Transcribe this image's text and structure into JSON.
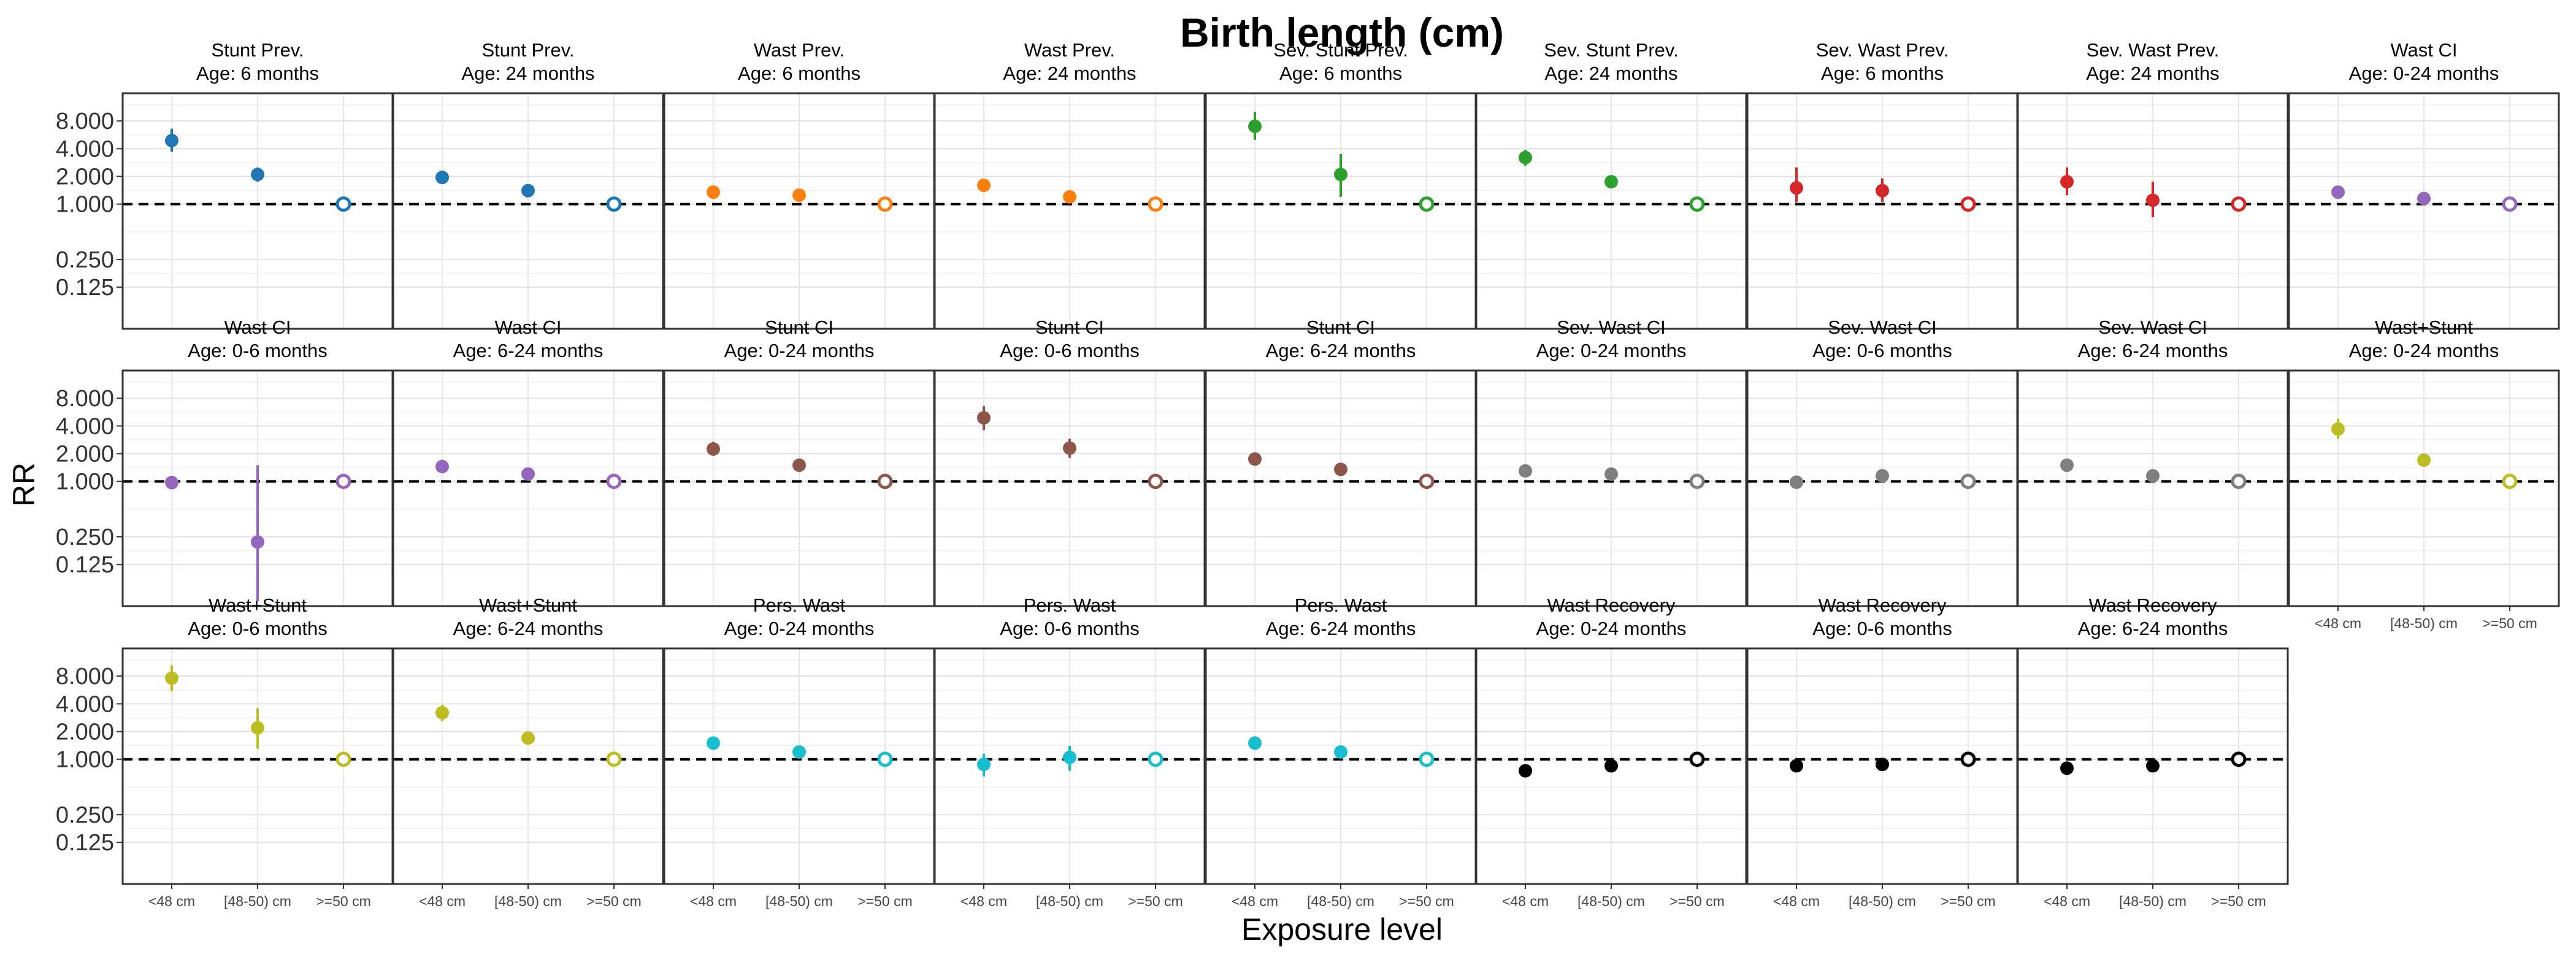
{
  "chart_data": {
    "type": "scatter",
    "title": "Birth length (cm)",
    "xlabel": "Exposure level",
    "ylabel": "RR",
    "y_scale": "log2",
    "ylim": [
      0.0442,
      16
    ],
    "y_ticks": [
      "0.125",
      "0.250",
      "1.000",
      "2.000",
      "4.000",
      "8.000"
    ],
    "categories": [
      "<48 cm",
      "[48-50) cm",
      ">=50 cm"
    ],
    "reference_line": 1,
    "grid": true,
    "legend": "none",
    "panels": [
      {
        "outcome": "Stunt Prev.",
        "age": "Age: 6 months",
        "color": "#1f77b4",
        "rr": [
          4.9,
          2.1,
          1.0
        ],
        "lower": [
          3.7,
          1.75,
          1.0
        ],
        "upper": [
          6.6,
          2.5,
          1.0
        ]
      },
      {
        "outcome": "Stunt Prev.",
        "age": "Age: 24 months",
        "color": "#1f77b4",
        "rr": [
          1.95,
          1.4,
          1.0
        ],
        "lower": [
          1.8,
          1.3,
          1.0
        ],
        "upper": [
          2.1,
          1.5,
          1.0
        ]
      },
      {
        "outcome": "Wast Prev.",
        "age": "Age: 6 months",
        "color": "#ff7f0e",
        "rr": [
          1.35,
          1.25,
          1.0
        ],
        "lower": [
          1.2,
          1.1,
          1.0
        ],
        "upper": [
          1.5,
          1.4,
          1.0
        ]
      },
      {
        "outcome": "Wast Prev.",
        "age": "Age: 24 months",
        "color": "#ff7f0e",
        "rr": [
          1.6,
          1.2,
          1.0
        ],
        "lower": [
          1.45,
          1.1,
          1.0
        ],
        "upper": [
          1.75,
          1.3,
          1.0
        ]
      },
      {
        "outcome": "Sev. Stunt Prev.",
        "age": "Age: 6 months",
        "color": "#2ca02c",
        "rr": [
          7.0,
          2.1,
          1.0
        ],
        "lower": [
          5.0,
          1.2,
          1.0
        ],
        "upper": [
          10.0,
          3.5,
          1.0
        ]
      },
      {
        "outcome": "Sev. Stunt Prev.",
        "age": "Age: 24 months",
        "color": "#2ca02c",
        "rr": [
          3.2,
          1.75,
          1.0
        ],
        "lower": [
          2.6,
          1.6,
          1.0
        ],
        "upper": [
          3.9,
          1.9,
          1.0
        ]
      },
      {
        "outcome": "Sev. Wast Prev.",
        "age": "Age: 6 months",
        "color": "#d62728",
        "rr": [
          1.5,
          1.4,
          1.0
        ],
        "lower": [
          1.05,
          1.05,
          1.0
        ],
        "upper": [
          2.5,
          1.9,
          1.0
        ]
      },
      {
        "outcome": "Sev. Wast Prev.",
        "age": "Age: 24 months",
        "color": "#d62728",
        "rr": [
          1.75,
          1.1,
          1.0
        ],
        "lower": [
          1.25,
          0.72,
          1.0
        ],
        "upper": [
          2.5,
          1.75,
          1.0
        ]
      },
      {
        "outcome": "Wast CI",
        "age": "Age: 0-24 months",
        "color": "#9467bd",
        "rr": [
          1.35,
          1.15,
          1.0
        ],
        "lower": [
          1.25,
          1.05,
          1.0
        ],
        "upper": [
          1.45,
          1.25,
          1.0
        ]
      },
      {
        "outcome": "Wast CI",
        "age": "Age: 0-6 months",
        "color": "#9467bd",
        "rr": [
          0.97,
          0.22,
          1.0
        ],
        "lower": [
          0.9,
          0.05,
          1.0
        ],
        "upper": [
          1.05,
          1.5,
          1.0
        ]
      },
      {
        "outcome": "Wast CI",
        "age": "Age: 6-24 months",
        "color": "#9467bd",
        "rr": [
          1.45,
          1.2,
          1.0
        ],
        "lower": [
          1.35,
          1.1,
          1.0
        ],
        "upper": [
          1.55,
          1.3,
          1.0
        ]
      },
      {
        "outcome": "Stunt CI",
        "age": "Age: 0-24 months",
        "color": "#8c564b",
        "rr": [
          2.25,
          1.5,
          1.0
        ],
        "lower": [
          1.9,
          1.35,
          1.0
        ],
        "upper": [
          2.7,
          1.65,
          1.0
        ]
      },
      {
        "outcome": "Stunt CI",
        "age": "Age: 0-6 months",
        "color": "#8c564b",
        "rr": [
          4.9,
          2.3,
          1.0
        ],
        "lower": [
          3.6,
          1.8,
          1.0
        ],
        "upper": [
          6.6,
          2.9,
          1.0
        ]
      },
      {
        "outcome": "Stunt CI",
        "age": "Age: 6-24 months",
        "color": "#8c564b",
        "rr": [
          1.75,
          1.35,
          1.0
        ],
        "lower": [
          1.55,
          1.25,
          1.0
        ],
        "upper": [
          2.0,
          1.45,
          1.0
        ]
      },
      {
        "outcome": "Sev. Wast CI",
        "age": "Age: 0-24 months",
        "color": "#7f7f7f",
        "rr": [
          1.3,
          1.2,
          1.0
        ],
        "lower": [
          1.15,
          1.1,
          1.0
        ],
        "upper": [
          1.45,
          1.3,
          1.0
        ]
      },
      {
        "outcome": "Sev. Wast CI",
        "age": "Age: 0-6 months",
        "color": "#7f7f7f",
        "rr": [
          0.98,
          1.15,
          1.0
        ],
        "lower": [
          0.85,
          1.0,
          1.0
        ],
        "upper": [
          1.15,
          1.3,
          1.0
        ]
      },
      {
        "outcome": "Sev. Wast CI",
        "age": "Age: 6-24 months",
        "color": "#7f7f7f",
        "rr": [
          1.5,
          1.15,
          1.0
        ],
        "lower": [
          1.35,
          1.05,
          1.0
        ],
        "upper": [
          1.65,
          1.25,
          1.0
        ]
      },
      {
        "outcome": "Wast+Stunt",
        "age": "Age: 0-24 months",
        "color": "#bcbd22",
        "rr": [
          3.7,
          1.7,
          1.0
        ],
        "lower": [
          2.9,
          1.45,
          1.0
        ],
        "upper": [
          4.8,
          2.0,
          1.0
        ]
      },
      {
        "outcome": "Wast+Stunt",
        "age": "Age: 0-6 months",
        "color": "#bcbd22",
        "rr": [
          7.6,
          2.2,
          1.0
        ],
        "lower": [
          5.5,
          1.3,
          1.0
        ],
        "upper": [
          10.5,
          3.6,
          1.0
        ]
      },
      {
        "outcome": "Wast+Stunt",
        "age": "Age: 6-24 months",
        "color": "#bcbd22",
        "rr": [
          3.2,
          1.7,
          1.0
        ],
        "lower": [
          2.6,
          1.45,
          1.0
        ],
        "upper": [
          3.9,
          2.0,
          1.0
        ]
      },
      {
        "outcome": "Pers. Wast",
        "age": "Age: 0-24 months",
        "color": "#17becf",
        "rr": [
          1.5,
          1.2,
          1.0
        ],
        "lower": [
          1.35,
          1.1,
          1.0
        ],
        "upper": [
          1.65,
          1.3,
          1.0
        ]
      },
      {
        "outcome": "Pers. Wast",
        "age": "Age: 0-6 months",
        "color": "#17becf",
        "rr": [
          0.88,
          1.05,
          1.0
        ],
        "lower": [
          0.65,
          0.75,
          1.0
        ],
        "upper": [
          1.15,
          1.4,
          1.0
        ]
      },
      {
        "outcome": "Pers. Wast",
        "age": "Age: 6-24 months",
        "color": "#17becf",
        "rr": [
          1.5,
          1.2,
          1.0
        ],
        "lower": [
          1.3,
          1.1,
          1.0
        ],
        "upper": [
          1.7,
          1.3,
          1.0
        ]
      },
      {
        "outcome": "Wast Recovery",
        "age": "Age: 0-24 months",
        "color": "#000000",
        "rr": [
          0.75,
          0.85,
          1.0
        ],
        "lower": [
          0.72,
          0.82,
          1.0
        ],
        "upper": [
          0.78,
          0.88,
          1.0
        ]
      },
      {
        "outcome": "Wast Recovery",
        "age": "Age: 0-6 months",
        "color": "#000000",
        "rr": [
          0.85,
          0.88,
          1.0
        ],
        "lower": [
          0.82,
          0.85,
          1.0
        ],
        "upper": [
          0.88,
          0.91,
          1.0
        ]
      },
      {
        "outcome": "Wast Recovery",
        "age": "Age: 6-24 months",
        "color": "#000000",
        "rr": [
          0.8,
          0.85,
          1.0
        ],
        "lower": [
          0.77,
          0.82,
          1.0
        ],
        "upper": [
          0.83,
          0.88,
          1.0
        ]
      }
    ]
  }
}
